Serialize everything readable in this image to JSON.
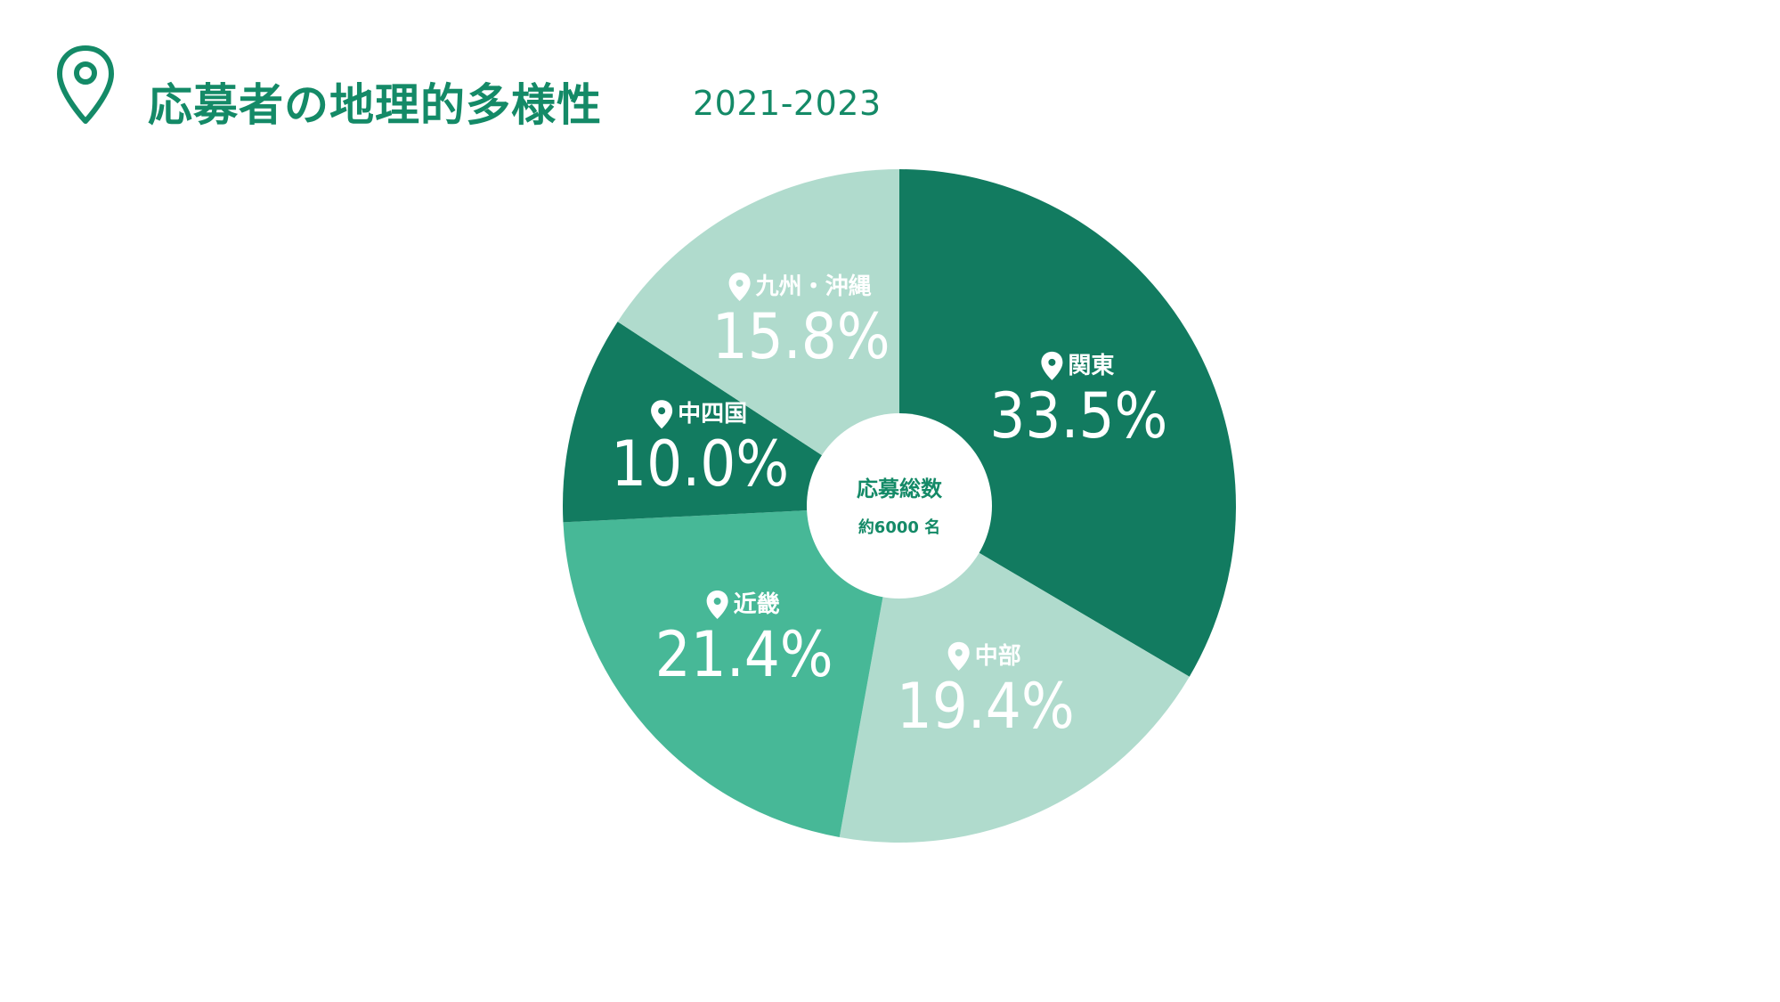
{
  "header": {
    "title": "応募者の地理的多様性",
    "period": "2021-2023"
  },
  "center": {
    "title": "応募総数",
    "subtitle": "約6000 名"
  },
  "chart_data": {
    "type": "pie",
    "variant": "donut",
    "start_angle_deg": 0,
    "direction": "clockwise",
    "labels": [
      "関東",
      "中部",
      "近畿",
      "中四国",
      "九州・沖縄"
    ],
    "values": [
      33.5,
      19.4,
      21.4,
      10.0,
      15.8
    ],
    "value_labels": [
      "33.5%",
      "19.4%",
      "21.4%",
      "10.0%",
      "15.8%"
    ],
    "unit": "%",
    "colors": [
      "#127b60",
      "#b0dbcd",
      "#47b897",
      "#127b60",
      "#b0dbcd"
    ]
  },
  "colors": {
    "accent": "#148a67",
    "background": "#ffffff"
  },
  "icons": {
    "header": "map-pin-icon",
    "slice": "map-pin-icon"
  }
}
